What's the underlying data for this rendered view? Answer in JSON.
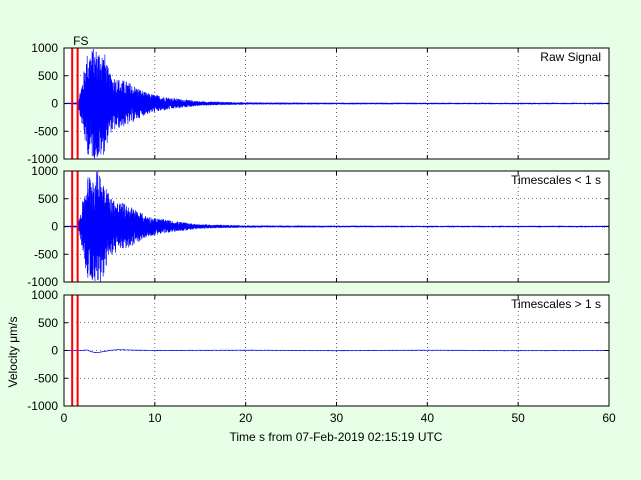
{
  "figure": {
    "xlabel": "Time s from 07-Feb-2019 02:15:19 UTC",
    "ylabel": "Velocity μm/s",
    "background_color": "#e6ffe6",
    "axes_color": "#ffffff",
    "signal_color": "#0000ff",
    "marker_color": "#ff0000",
    "marker_label": "FS"
  },
  "chart_data": [
    {
      "type": "line",
      "title": "Raw Signal",
      "xlim": [
        0,
        60
      ],
      "ylim": [
        -1000,
        1000
      ],
      "xticks": [
        0,
        10,
        20,
        30,
        40,
        50,
        60
      ],
      "yticks": [
        1000,
        500,
        0,
        -500,
        -1000
      ],
      "grid": true,
      "markers_x": [
        0.9,
        1.5
      ],
      "series": [
        {
          "x": [
            0,
            1.5,
            2,
            2.5,
            3,
            3.5,
            4,
            4.5,
            5,
            6,
            7,
            8,
            9,
            10,
            12,
            15,
            20,
            30,
            60
          ],
          "envelope": [
            10,
            20,
            400,
            900,
            1000,
            1000,
            1000,
            900,
            550,
            450,
            400,
            300,
            200,
            160,
            100,
            40,
            20,
            15,
            12
          ]
        }
      ]
    },
    {
      "type": "line",
      "title": "Timescales < 1 s",
      "xlim": [
        0,
        60
      ],
      "ylim": [
        -1000,
        1000
      ],
      "xticks": [
        0,
        10,
        20,
        30,
        40,
        50,
        60
      ],
      "yticks": [
        1000,
        500,
        0,
        -500,
        -1000
      ],
      "grid": true,
      "markers_x": [
        0.9,
        1.5
      ],
      "series": [
        {
          "x": [
            0,
            1.5,
            2,
            2.5,
            3,
            3.5,
            4,
            4.5,
            5,
            6,
            7,
            8,
            9,
            10,
            12,
            15,
            20,
            30,
            60
          ],
          "envelope": [
            10,
            20,
            400,
            900,
            1000,
            1000,
            1000,
            900,
            550,
            450,
            400,
            300,
            200,
            160,
            100,
            40,
            20,
            15,
            12
          ]
        }
      ]
    },
    {
      "type": "line",
      "title": "Timescales > 1 s",
      "xlim": [
        0,
        60
      ],
      "ylim": [
        -1000,
        1000
      ],
      "xticks": [
        0,
        10,
        20,
        30,
        40,
        50,
        60
      ],
      "xticklabels": [
        "0",
        "10",
        "20",
        "30",
        "40",
        "50",
        "60"
      ],
      "yticks": [
        1000,
        500,
        0,
        -500,
        -1000
      ],
      "grid": true,
      "markers_x": [
        0.9,
        1.5
      ],
      "series": [
        {
          "x": [
            0,
            2,
            2.5,
            3,
            3.5,
            4,
            5,
            6,
            8,
            10,
            20,
            30,
            40,
            50,
            60
          ],
          "y": [
            0,
            0,
            10,
            -20,
            -40,
            -30,
            0,
            15,
            5,
            0,
            5,
            -3,
            5,
            -3,
            0
          ]
        }
      ]
    }
  ]
}
